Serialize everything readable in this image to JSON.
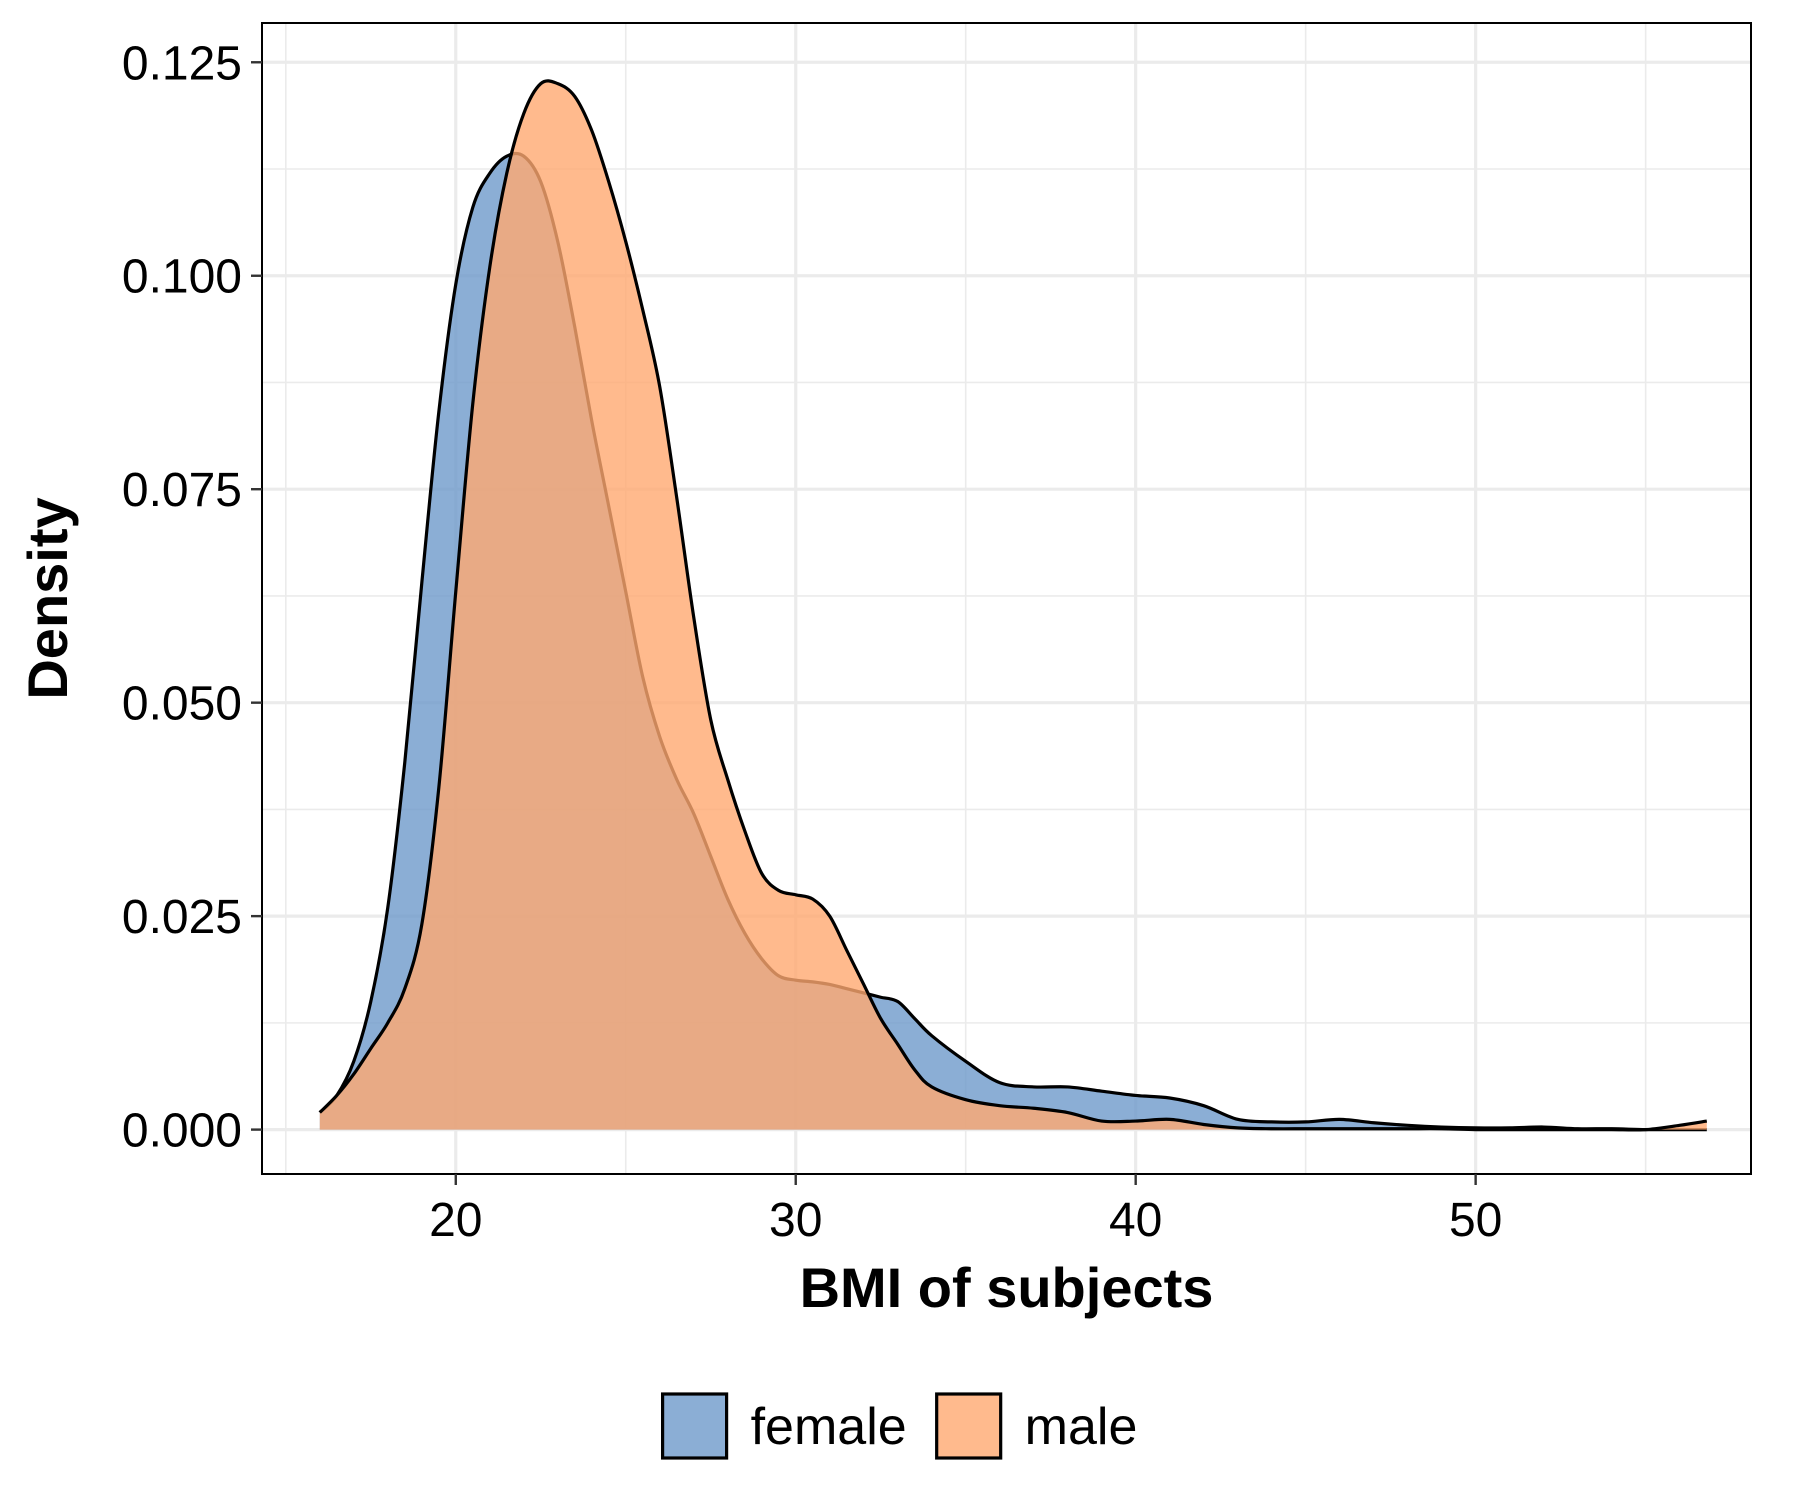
{
  "chart_data": {
    "type": "area",
    "xlabel": "BMI of subjects",
    "ylabel": "Density",
    "xlim": [
      14.3,
      58.1
    ],
    "ylim": [
      -0.0052,
      0.1296
    ],
    "x_ticks": [
      20,
      30,
      40,
      50
    ],
    "x_tick_labels": [
      "20",
      "30",
      "40",
      "50"
    ],
    "y_ticks": [
      0.0,
      0.025,
      0.05,
      0.075,
      0.1,
      0.125
    ],
    "y_tick_labels": [
      "0.000",
      "0.025",
      "0.050",
      "0.075",
      "0.100",
      "0.125"
    ],
    "grid": true,
    "legend_position": "bottom",
    "series": [
      {
        "name": "female",
        "color": "#6E9ACB",
        "opacity": 0.8,
        "x": [
          16.0,
          16.5,
          17.0,
          17.5,
          18.0,
          18.5,
          19.0,
          19.5,
          20.0,
          20.5,
          21.0,
          21.5,
          22.0,
          22.5,
          23.0,
          23.5,
          24.0,
          24.5,
          25.0,
          25.5,
          26.0,
          26.5,
          27.0,
          27.5,
          28.0,
          28.5,
          29.0,
          29.5,
          30.0,
          30.5,
          31.0,
          31.5,
          32.0,
          32.5,
          33.0,
          33.5,
          34.0,
          35.0,
          36.0,
          37.0,
          38.0,
          39.0,
          40.0,
          41.0,
          42.0,
          43.0,
          44.0,
          45.0,
          46.0,
          47.0,
          48.0,
          49.0,
          50.0,
          51.0,
          52.0,
          53.0,
          54.0,
          55.0,
          56.0,
          56.8
        ],
        "y": [
          0.002,
          0.004,
          0.008,
          0.015,
          0.026,
          0.043,
          0.064,
          0.084,
          0.099,
          0.108,
          0.112,
          0.114,
          0.114,
          0.111,
          0.104,
          0.094,
          0.083,
          0.073,
          0.063,
          0.053,
          0.046,
          0.041,
          0.037,
          0.032,
          0.027,
          0.023,
          0.02,
          0.018,
          0.0175,
          0.0173,
          0.017,
          0.0165,
          0.016,
          0.0155,
          0.015,
          0.013,
          0.011,
          0.008,
          0.0055,
          0.005,
          0.005,
          0.0045,
          0.004,
          0.0037,
          0.0028,
          0.0012,
          0.0009,
          0.0009,
          0.0012,
          0.0008,
          0.0005,
          0.0003,
          0.0002,
          0.0002,
          0.0003,
          0.0001,
          0.0001,
          0.0,
          0.0,
          0.0
        ]
      },
      {
        "name": "male",
        "color": "#FFA970",
        "opacity": 0.8,
        "x": [
          16.0,
          16.5,
          17.0,
          17.5,
          18.0,
          18.5,
          19.0,
          19.5,
          20.0,
          20.5,
          21.0,
          21.5,
          22.0,
          22.5,
          23.0,
          23.5,
          24.0,
          24.5,
          25.0,
          25.5,
          26.0,
          26.5,
          27.0,
          27.5,
          28.0,
          28.5,
          29.0,
          29.5,
          30.0,
          30.5,
          31.0,
          31.5,
          32.0,
          32.5,
          33.0,
          33.5,
          34.0,
          35.0,
          36.0,
          37.0,
          38.0,
          39.0,
          40.0,
          41.0,
          42.0,
          43.0,
          44.0,
          45.0,
          46.0,
          47.0,
          48.0,
          49.0,
          50.0,
          51.0,
          52.0,
          53.0,
          54.0,
          55.0,
          56.0,
          56.8
        ],
        "y": [
          0.002,
          0.004,
          0.0065,
          0.0095,
          0.0125,
          0.0165,
          0.024,
          0.04,
          0.063,
          0.085,
          0.101,
          0.112,
          0.119,
          0.1225,
          0.1225,
          0.121,
          0.117,
          0.111,
          0.104,
          0.096,
          0.087,
          0.074,
          0.06,
          0.048,
          0.041,
          0.035,
          0.03,
          0.028,
          0.0275,
          0.027,
          0.025,
          0.021,
          0.017,
          0.013,
          0.01,
          0.007,
          0.005,
          0.0035,
          0.0028,
          0.0025,
          0.002,
          0.001,
          0.001,
          0.0012,
          0.0006,
          0.0002,
          0.0001,
          0.0001,
          0.0001,
          0.0001,
          0.0001,
          0.0001,
          0.0,
          0.0,
          0.0,
          0.0,
          0.0,
          0.0,
          0.0005,
          0.001
        ]
      }
    ]
  }
}
